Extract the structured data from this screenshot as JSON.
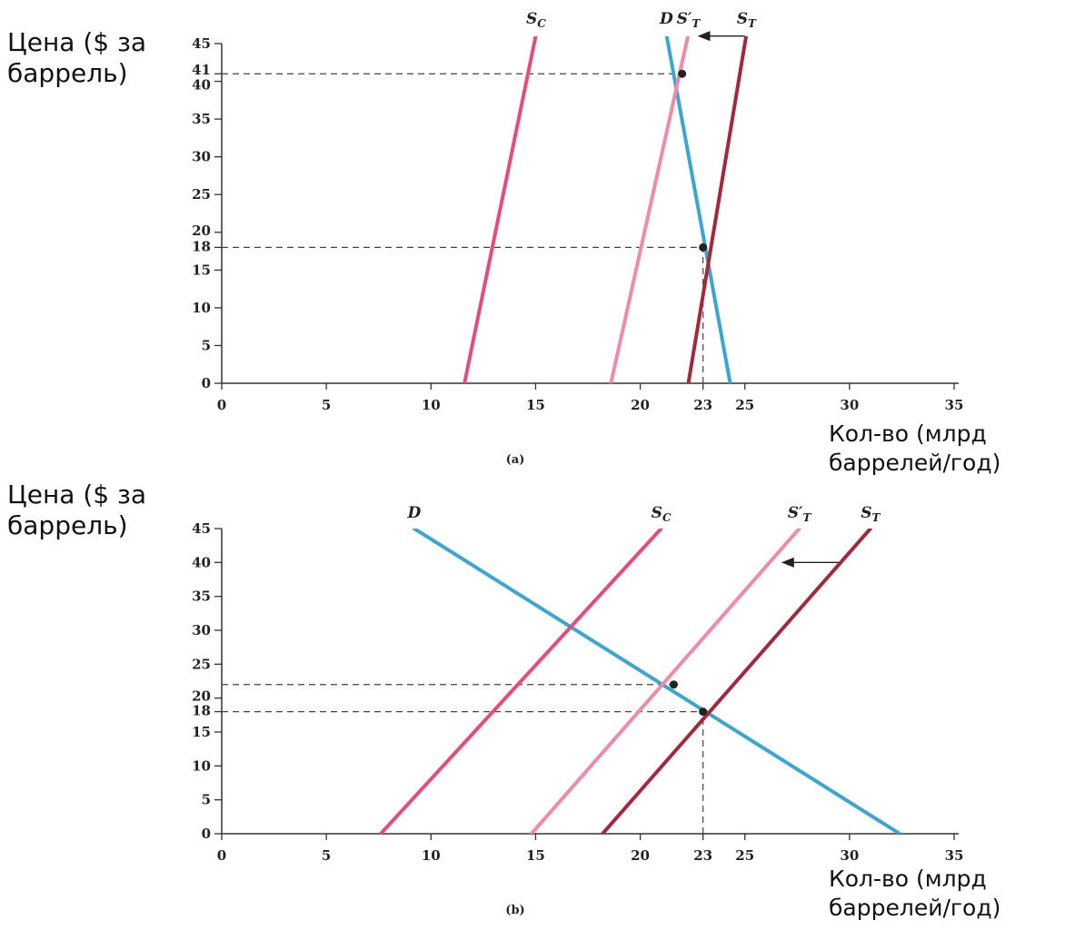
{
  "chart_data": [
    {
      "type": "line",
      "caption": "(a)",
      "ylabel": "Цена ($ за баррель)",
      "xlabel": "Кол-во (млрд баррелей/год)",
      "xlim": [
        0,
        35
      ],
      "ylim": [
        0,
        45
      ],
      "x_ticks": [
        "0",
        "5",
        "10",
        "15",
        "20",
        "23",
        "25",
        "30",
        "35"
      ],
      "x_tick_values": [
        0,
        5,
        10,
        15,
        20,
        23,
        25,
        30,
        35
      ],
      "y_ticks": [
        "0",
        "5",
        "10",
        "15",
        "18",
        "20",
        "25",
        "30",
        "35",
        "40",
        "41",
        "45"
      ],
      "y_tick_values": [
        0,
        5,
        10,
        15,
        18,
        20,
        25,
        30,
        35,
        40,
        41,
        45
      ],
      "series": [
        {
          "name": "S",
          "sub": "C",
          "prime": false,
          "color": "#e64b7a",
          "width": 4,
          "points": [
            [
              11.6,
              0
            ],
            [
              15.3,
              50
            ]
          ]
        },
        {
          "name": "D",
          "sub": "",
          "prime": false,
          "color": "#3ba6d2",
          "width": 4,
          "points": [
            [
              21.0,
              50
            ],
            [
              24.3,
              0
            ]
          ]
        },
        {
          "name": "S",
          "sub": "T",
          "prime": true,
          "color": "#ef8aa8",
          "width": 4,
          "points": [
            [
              18.6,
              0
            ],
            [
              22.6,
              50
            ]
          ]
        },
        {
          "name": "S",
          "sub": "T",
          "prime": false,
          "color": "#a3283c",
          "width": 4,
          "points": [
            [
              22.3,
              0
            ],
            [
              25.3,
              50
            ]
          ]
        }
      ],
      "points": [
        [
          22.0,
          41
        ],
        [
          23.0,
          18
        ]
      ],
      "dashed": [
        {
          "from": [
            0,
            41
          ],
          "to": [
            22.0,
            41
          ]
        },
        {
          "from": [
            0,
            18
          ],
          "to": [
            23.0,
            18
          ]
        },
        {
          "from": [
            23.0,
            0
          ],
          "to": [
            23.0,
            18
          ]
        }
      ],
      "arrow": {
        "from": [
          25.0,
          46
        ],
        "to": [
          22.8,
          46
        ]
      }
    },
    {
      "type": "line",
      "caption": "(b)",
      "ylabel": "Цена ($ за баррель)",
      "xlabel": "Кол-во (млрд баррелей/год)",
      "xlim": [
        0,
        35
      ],
      "ylim": [
        0,
        45
      ],
      "x_ticks": [
        "0",
        "5",
        "10",
        "15",
        "20",
        "23",
        "25",
        "30",
        "35"
      ],
      "x_tick_values": [
        0,
        5,
        10,
        15,
        20,
        23,
        25,
        30,
        35
      ],
      "y_ticks": [
        "0",
        "5",
        "10",
        "15",
        "18",
        "20",
        "25",
        "30",
        "35",
        "40",
        "45"
      ],
      "y_tick_values": [
        0,
        5,
        10,
        15,
        18,
        20,
        25,
        30,
        35,
        40,
        45
      ],
      "series": [
        {
          "name": "D",
          "sub": "",
          "prime": false,
          "color": "#3ba6d2",
          "width": 4,
          "points": [
            [
              9.2,
              45
            ],
            [
              32.4,
              0
            ]
          ]
        },
        {
          "name": "S",
          "sub": "C",
          "prime": false,
          "color": "#e64b7a",
          "width": 4,
          "points": [
            [
              7.6,
              0
            ],
            [
              21.0,
              45
            ]
          ]
        },
        {
          "name": "S",
          "sub": "T",
          "prime": true,
          "color": "#ef8aa8",
          "width": 4,
          "points": [
            [
              14.8,
              0
            ],
            [
              27.6,
              45
            ]
          ]
        },
        {
          "name": "S",
          "sub": "T",
          "prime": false,
          "color": "#a3283c",
          "width": 4,
          "points": [
            [
              18.2,
              0
            ],
            [
              31.0,
              45
            ]
          ]
        }
      ],
      "points": [
        [
          21.6,
          22
        ],
        [
          23.0,
          18
        ]
      ],
      "dashed": [
        {
          "from": [
            0,
            22
          ],
          "to": [
            21.6,
            22
          ]
        },
        {
          "from": [
            0,
            18
          ],
          "to": [
            23.0,
            18
          ]
        },
        {
          "from": [
            23.0,
            0
          ],
          "to": [
            23.0,
            18
          ]
        }
      ],
      "arrow": {
        "from": [
          29.5,
          40
        ],
        "to": [
          26.8,
          40
        ]
      }
    }
  ]
}
